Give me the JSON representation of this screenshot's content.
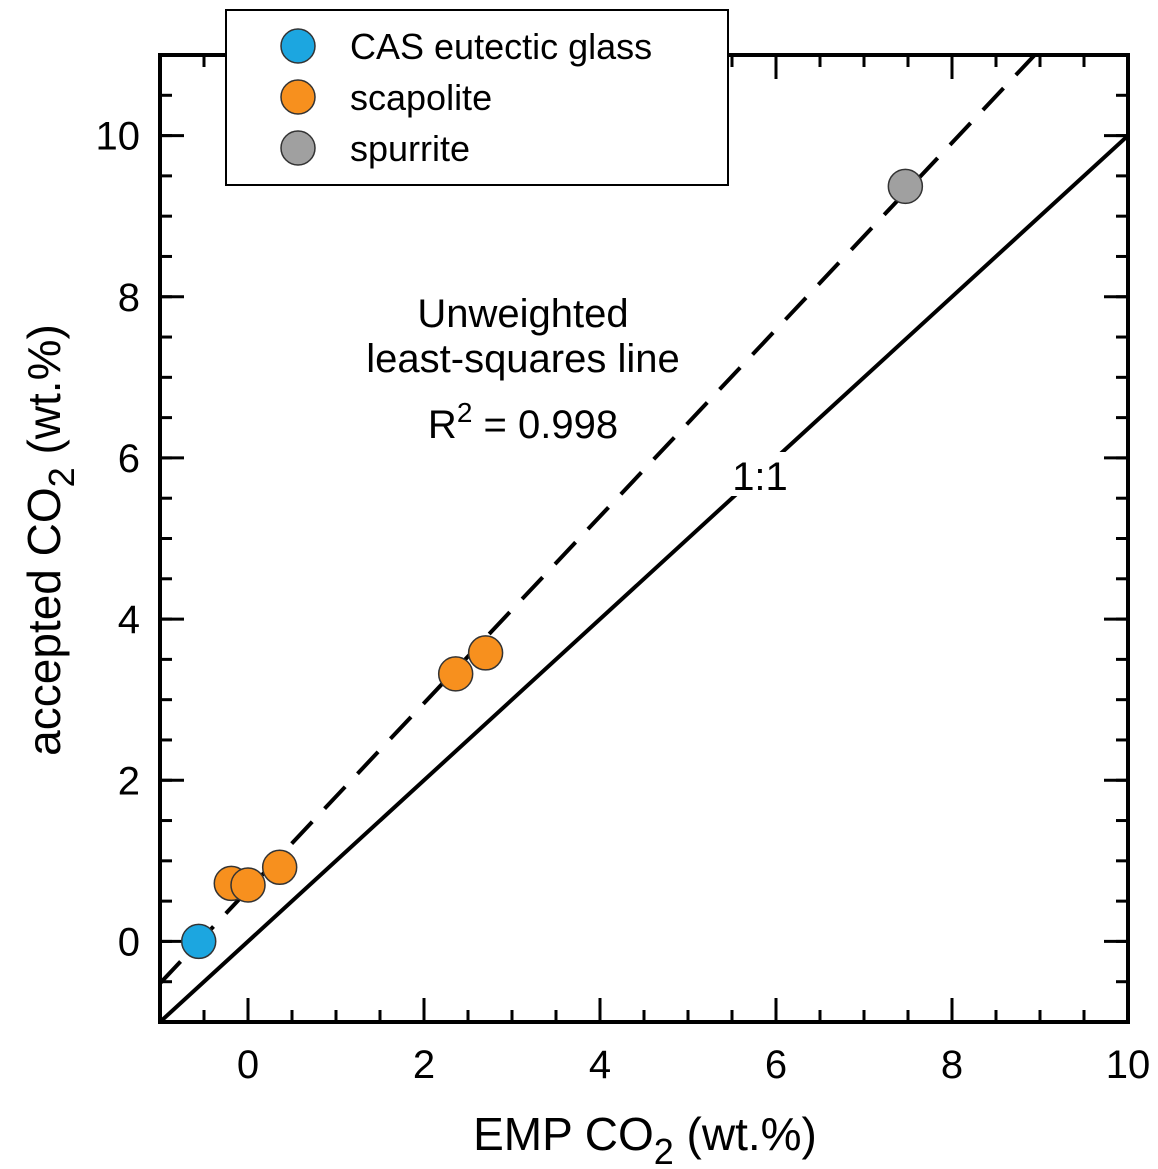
{
  "chart_data": {
    "type": "scatter",
    "x_label": [
      "EMP CO",
      "2",
      " (wt.%)"
    ],
    "y_label": [
      "accepted CO",
      "2",
      " (wt.%)"
    ],
    "xlim": [
      -1,
      10
    ],
    "ylim": [
      -1,
      11
    ],
    "xticks": [
      0,
      2,
      4,
      6,
      8,
      10
    ],
    "yticks": [
      0,
      2,
      4,
      6,
      8,
      10
    ],
    "minor_tick_step": 0.5,
    "legend": "upper left",
    "series": [
      {
        "name": "CAS eutectic glass",
        "color": "#1ca6e0",
        "x": [
          -0.56
        ],
        "values": [
          0
        ]
      },
      {
        "name": "scapolite",
        "color": "#f7901e",
        "x": [
          -0.19,
          0,
          0.36,
          2.36,
          2.7
        ],
        "values": [
          0.72,
          0.7,
          0.92,
          3.32,
          3.58
        ]
      },
      {
        "name": "spurrite",
        "color": "#a0a0a0",
        "x": [
          7.47
        ],
        "values": [
          9.37
        ]
      }
    ],
    "lines": [
      {
        "style": "dashed",
        "x": [
          -1,
          8.94
        ],
        "values": [
          -0.52,
          11
        ]
      },
      {
        "style": "solid",
        "x": [
          -1,
          10
        ],
        "values": [
          -1,
          10
        ]
      }
    ],
    "annotations": {
      "fit_lines": [
        "Unweighted",
        "least-squares line"
      ],
      "r_squared": [
        "R",
        "2",
        " = 0.998"
      ],
      "identity": "1:1"
    }
  }
}
